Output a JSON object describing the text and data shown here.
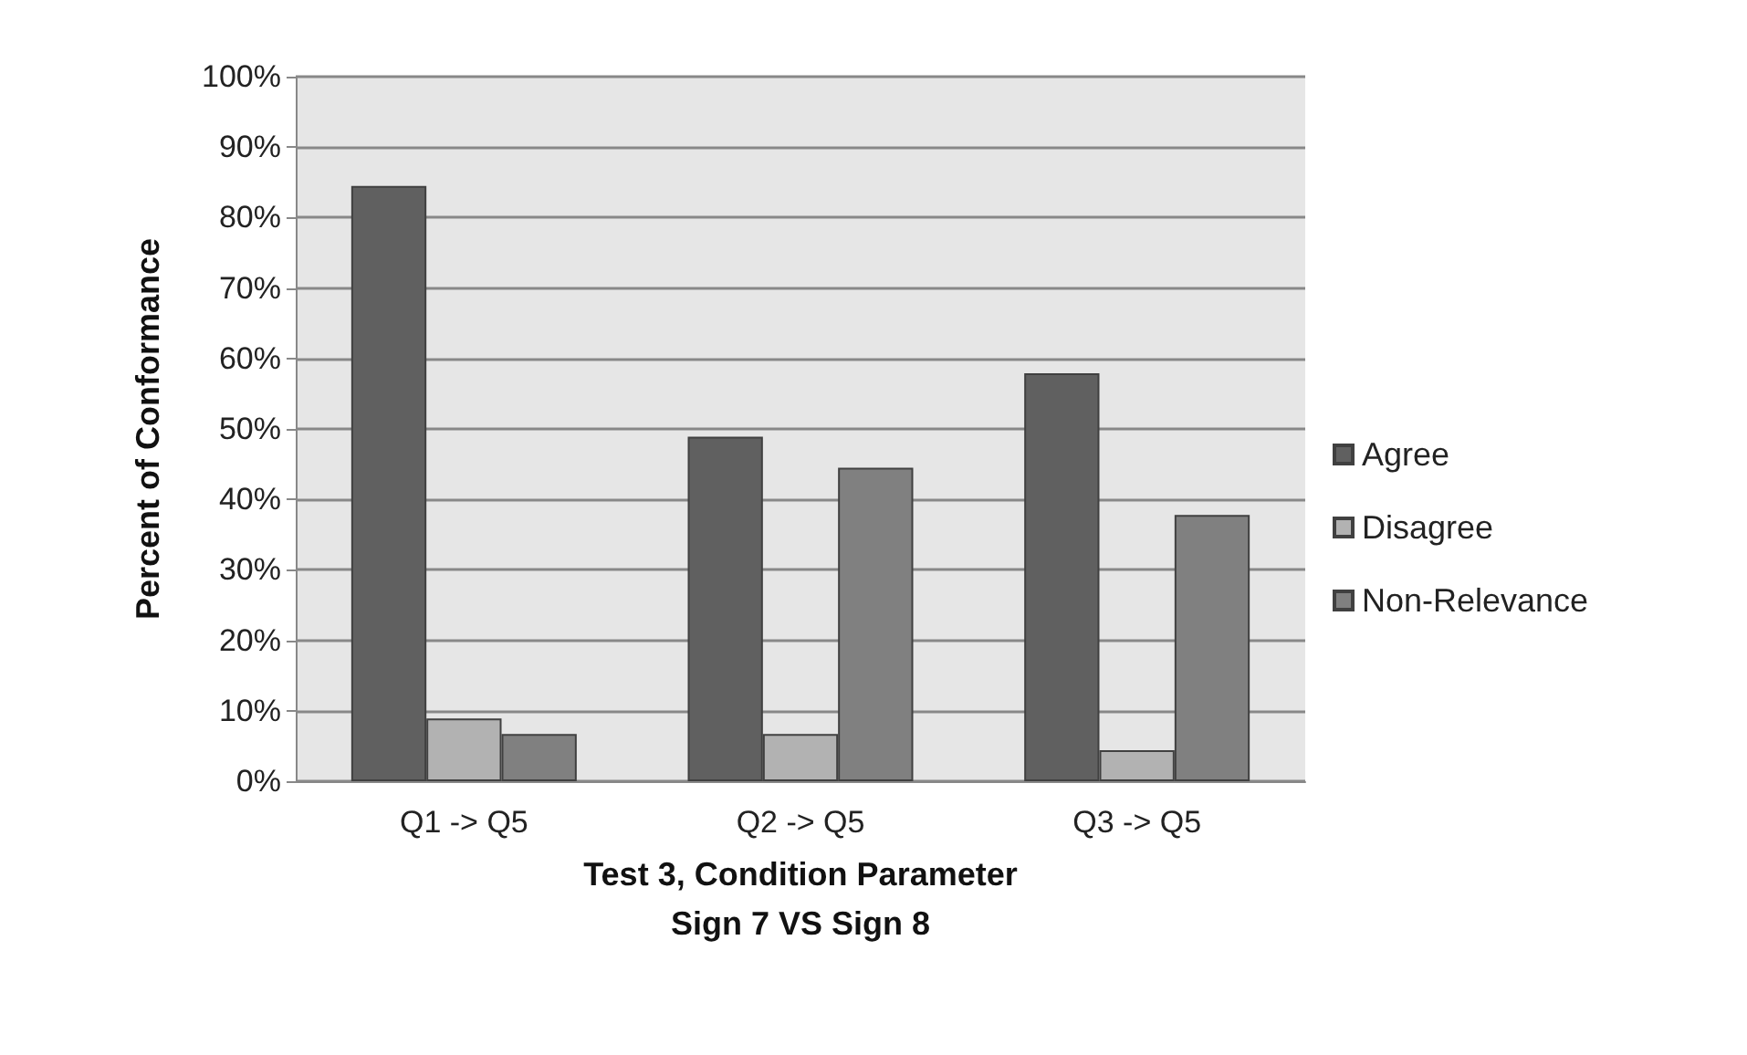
{
  "chart_data": {
    "type": "bar",
    "xlabel": "Test 3, Condition Parameter\nSign 7 VS Sign 8",
    "ylabel": "Percent of Conformance",
    "categories": [
      "Q1 -> Q5",
      "Q2 -> Q5",
      "Q3 -> Q5"
    ],
    "series": [
      {
        "name": "Agree",
        "color": "#606060",
        "values": [
          84.5,
          48.9,
          57.9
        ]
      },
      {
        "name": "Disagree",
        "color": "#b2b2b2",
        "values": [
          8.9,
          6.7,
          4.4
        ]
      },
      {
        "name": "Non-Relevance",
        "color": "#808080",
        "values": [
          6.7,
          44.5,
          37.8
        ]
      }
    ],
    "ylim": [
      0,
      100
    ],
    "yticks": [
      {
        "value": 0,
        "label": "0%"
      },
      {
        "value": 10,
        "label": "10%"
      },
      {
        "value": 20,
        "label": "20%"
      },
      {
        "value": 30,
        "label": "30%"
      },
      {
        "value": 40,
        "label": "40%"
      },
      {
        "value": 50,
        "label": "50%"
      },
      {
        "value": 60,
        "label": "60%"
      },
      {
        "value": 70,
        "label": "70%"
      },
      {
        "value": 80,
        "label": "80%"
      },
      {
        "value": 90,
        "label": "90%"
      },
      {
        "value": 100,
        "label": "100%"
      }
    ],
    "grid": "y",
    "legend": "right"
  }
}
